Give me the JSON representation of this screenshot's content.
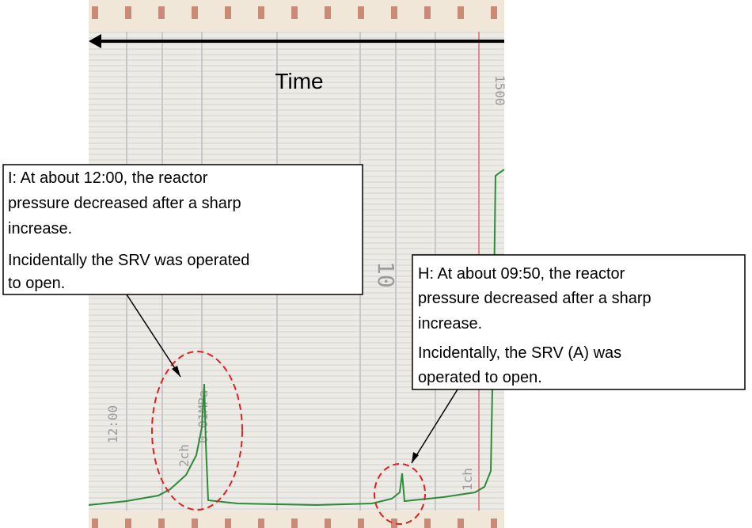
{
  "header": {
    "time_label": "Time"
  },
  "callouts": [
    {
      "lines": [
        "I: At about 12:00, the reactor",
        "pressure decreased after a sharp",
        "increase.",
        "Incidentally the SRV was operated",
        "to open."
      ]
    },
    {
      "lines": [
        "H: At about 09:50, the reactor",
        "pressure decreased after a sharp",
        "increase.",
        "Incidentally, the SRV (A) was",
        "operated to open."
      ]
    }
  ],
  "paper_labels": [
    "1500",
    "10",
    "12:00",
    "2ch",
    "1ch",
    "0.01MPa"
  ]
}
